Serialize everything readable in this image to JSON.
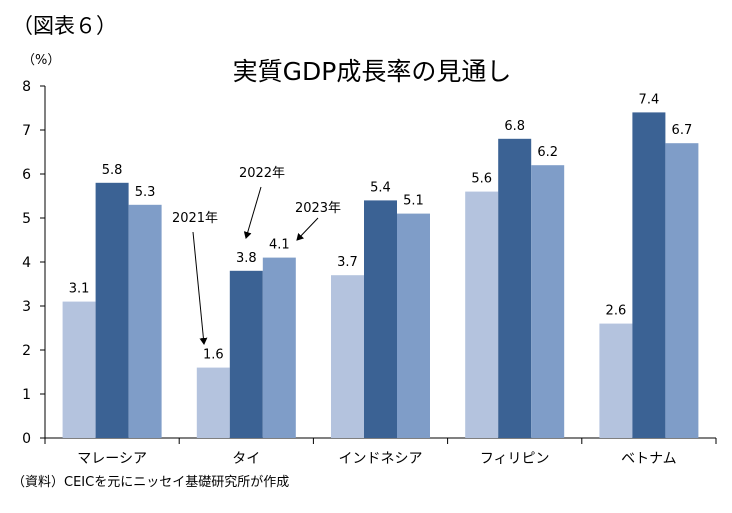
{
  "figure_label": "（図表６）",
  "source_note": "（資料）CEICを元にニッセイ基礎研究所が作成",
  "chart_data": {
    "type": "bar",
    "title": "実質GDP成長率の見通し",
    "y_unit": "（%）",
    "ylim": [
      0,
      8
    ],
    "yticks": [
      0,
      1,
      2,
      3,
      4,
      5,
      6,
      7,
      8
    ],
    "grid": false,
    "categories": [
      "マレーシア",
      "タイ",
      "インドネシア",
      "フィリピン",
      "ベトナム"
    ],
    "series": [
      {
        "name": "2021年",
        "color": "#b4c3de",
        "values": [
          3.1,
          1.6,
          3.7,
          5.6,
          2.6
        ]
      },
      {
        "name": "2022年",
        "color": "#3b6294",
        "values": [
          5.8,
          3.8,
          5.4,
          6.8,
          7.4
        ]
      },
      {
        "name": "2023年",
        "color": "#7f9dc8",
        "values": [
          5.3,
          4.1,
          5.1,
          6.2,
          6.7
        ]
      }
    ],
    "annotations": [
      {
        "series": 0,
        "category": 1,
        "text": "2021年"
      },
      {
        "series": 1,
        "category": 1,
        "text": "2022年"
      },
      {
        "series": 2,
        "category": 1,
        "text": "2023年"
      }
    ]
  }
}
